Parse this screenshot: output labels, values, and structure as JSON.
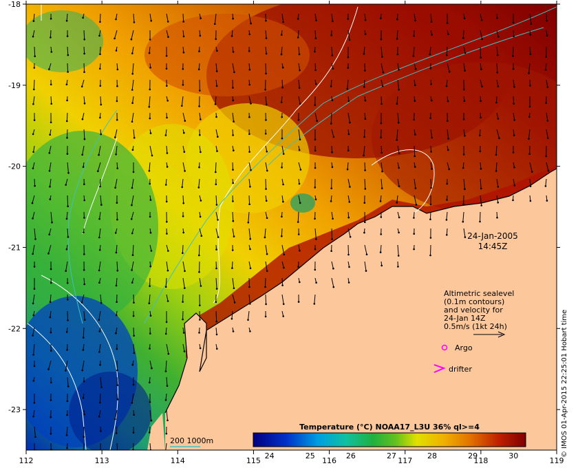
{
  "map": {
    "lon_ticks": [
      "112",
      "113",
      "114",
      "115",
      "116",
      "117",
      "118",
      "119"
    ],
    "lat_ticks": [
      "-18",
      "-19",
      "-20",
      "-21",
      "-22",
      "-23"
    ],
    "lon_range": [
      112,
      119
    ],
    "lat_range": [
      -23.5,
      -18
    ]
  },
  "date": {
    "day": "24-Jan-2005",
    "time": "14:45Z"
  },
  "legend": {
    "lines": [
      "Altimetric sealevel",
      "(0.1m contours)",
      "and velocity for",
      "24-Jan 14Z",
      "0.5m/s (1kt 24h)"
    ],
    "argo_label": "Argo",
    "drifter_label": "drifter",
    "argo_color": "#ff00ff",
    "drifter_color": "#ff00ff"
  },
  "depth_contour": {
    "label": "200  1000m",
    "color": "#40c0c0"
  },
  "colorbar": {
    "title": "Temperature (°C) NOAA17_L3U 36% ql>=4",
    "ticks": [
      "24",
      "25",
      "26",
      "27",
      "28",
      "29",
      "30"
    ],
    "range": [
      23.6,
      30.3
    ]
  },
  "credit": "© IMOS 01-Apr-2015 22:25:01 Hobart time",
  "colors": {
    "land": "#fcc89b",
    "cold": "#00008b",
    "warm": "#8b0000"
  }
}
